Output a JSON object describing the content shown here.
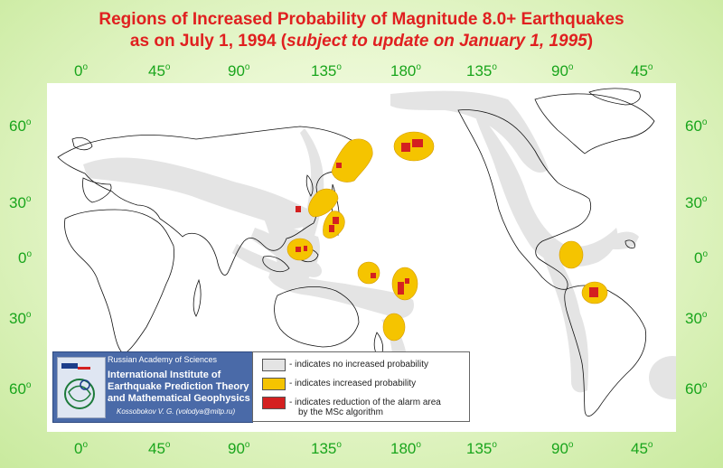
{
  "colors": {
    "title": "#e02020",
    "axis_ticks": "#19a51c",
    "no_increase_fill": "#e4e4e4",
    "increased_fill": "#f5c400",
    "reduced_fill": "#d42020",
    "land_outline": "#111111"
  },
  "title": {
    "line1": "Regions of Increased Probability of Magnitude 8.0+ Earthquakes",
    "line2_prefix": "as on July 1, 1994 (",
    "line2_italic": "subject to update on January 1, 1995",
    "line2_suffix": ")"
  },
  "axes": {
    "top_longitudes": [
      "0",
      "45",
      "90",
      "135",
      "180",
      "135",
      "90",
      "45"
    ],
    "bottom_longitudes": [
      "0",
      "45",
      "90",
      "135",
      "180",
      "135",
      "90",
      "45"
    ],
    "left_latitudes": [
      "60",
      "30",
      "0",
      "30",
      "60"
    ],
    "right_latitudes": [
      "60",
      "30",
      "0",
      "30",
      "60"
    ],
    "degree_symbol": "o"
  },
  "logo": {
    "academy": "Russian Academy of Sciences",
    "institute_line1": "International Institute of",
    "institute_line2": "Earthquake Prediction Theory",
    "institute_line3": "and Mathematical Geophysics",
    "author": "Kossobokov V. G. (volodya@mitp.ru)"
  },
  "legend": [
    {
      "swatch": "#e4e4e4",
      "text": "- indicates no increased probability"
    },
    {
      "swatch": "#f5c400",
      "text": "- indicates increased probability"
    },
    {
      "swatch": "#d42020",
      "text": "- indicates reduction of the alarm area",
      "text2": "by the MSc algorithm"
    }
  ]
}
